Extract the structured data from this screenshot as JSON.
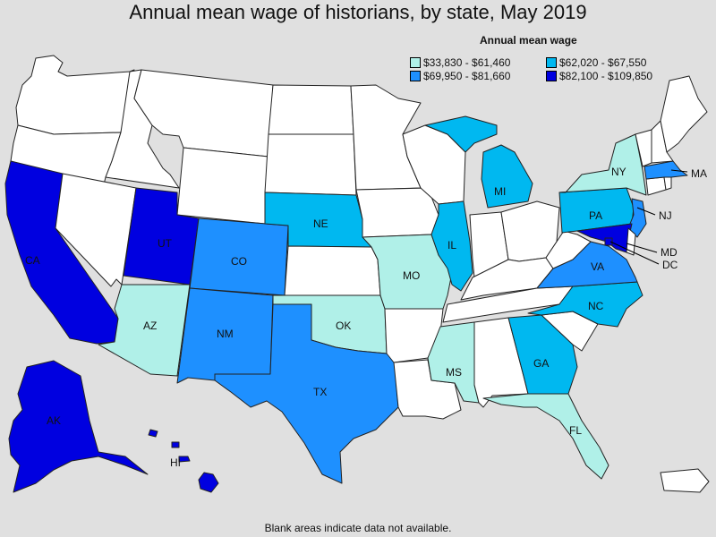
{
  "title": "Annual mean wage of historians, by state, May 2019",
  "legend": {
    "title": "Annual mean wage",
    "items": [
      {
        "label": "$33,830 - $61,460",
        "color": "#b0f0e8"
      },
      {
        "label": "$62,020 - $67,550",
        "color": "#00b8f0"
      },
      {
        "label": "$69,950 - $81,660",
        "color": "#1e90ff"
      },
      {
        "label": "$82,100 - $109,850",
        "color": "#0000e0"
      }
    ]
  },
  "footer": "Blank areas indicate data not available.",
  "colors": {
    "no_data": "#ffffff",
    "background": "#e0e0e0",
    "tier1": "#b0f0e8",
    "tier2": "#00b8f0",
    "tier3": "#1e90ff",
    "tier4": "#0000e0"
  },
  "chart_data": {
    "type": "choropleth",
    "bins": [
      "$33,830 - $61,460",
      "$62,020 - $67,550",
      "$69,950 - $81,660",
      "$82,100 - $109,850"
    ],
    "states": [
      {
        "code": "CA",
        "bin": 4
      },
      {
        "code": "UT",
        "bin": 4
      },
      {
        "code": "AK",
        "bin": 4
      },
      {
        "code": "HI",
        "bin": 4
      },
      {
        "code": "MD",
        "bin": 4
      },
      {
        "code": "DC",
        "bin": 4
      },
      {
        "code": "CO",
        "bin": 3
      },
      {
        "code": "NM",
        "bin": 3
      },
      {
        "code": "TX",
        "bin": 3
      },
      {
        "code": "VA",
        "bin": 3
      },
      {
        "code": "NJ",
        "bin": 3
      },
      {
        "code": "MA",
        "bin": 3
      },
      {
        "code": "NE",
        "bin": 2
      },
      {
        "code": "IL",
        "bin": 2
      },
      {
        "code": "MI",
        "bin": 2
      },
      {
        "code": "PA",
        "bin": 2
      },
      {
        "code": "NC",
        "bin": 2
      },
      {
        "code": "GA",
        "bin": 2
      },
      {
        "code": "AZ",
        "bin": 1
      },
      {
        "code": "OK",
        "bin": 1
      },
      {
        "code": "MO",
        "bin": 1
      },
      {
        "code": "MS",
        "bin": 1
      },
      {
        "code": "FL",
        "bin": 1
      },
      {
        "code": "NY",
        "bin": 1
      }
    ]
  }
}
